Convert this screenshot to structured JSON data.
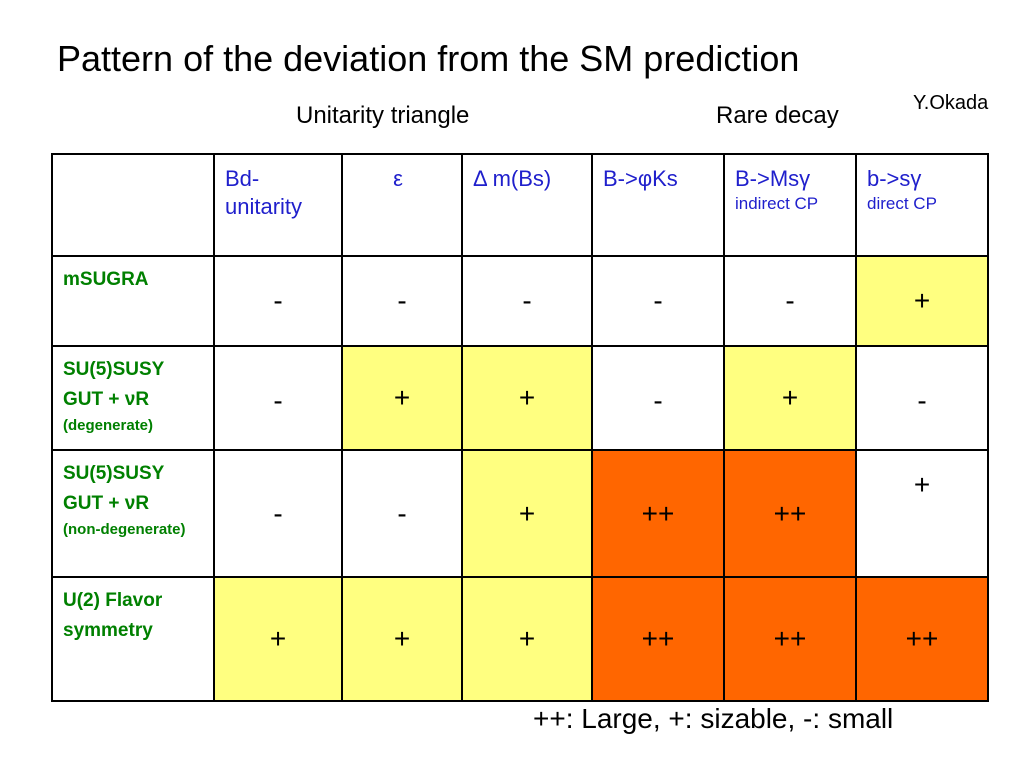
{
  "slide": {
    "title": "Pattern of the deviation from the SM prediction",
    "author": "Y.Okada",
    "group_unitarity": "Unitarity triangle",
    "group_rare": "Rare decay",
    "legend": "++: Large, +: sizable, -: small"
  },
  "colors": {
    "yellow": "#ffff80",
    "orange": "#ff6600",
    "header_text": "#2020cc",
    "row_label_text": "#008000"
  },
  "table": {
    "headers": [
      {
        "main": "Bd-unitarity",
        "sub": ""
      },
      {
        "main": "ε",
        "sub": ""
      },
      {
        "main": "Δ m(Bs)",
        "sub": ""
      },
      {
        "main": "B->φKs",
        "sub": ""
      },
      {
        "main": "B->Msγ",
        "sub": "indirect CP"
      },
      {
        "main": "b->sγ",
        "sub": "direct CP"
      }
    ],
    "rows": [
      {
        "label": "mSUGRA",
        "sublabel": "",
        "cells": [
          {
            "v": "-",
            "color": "white"
          },
          {
            "v": "-",
            "color": "white"
          },
          {
            "v": "-",
            "color": "white"
          },
          {
            "v": "-",
            "color": "white"
          },
          {
            "v": "-",
            "color": "white"
          },
          {
            "v": "+",
            "color": "yellow"
          }
        ]
      },
      {
        "label": "SU(5)SUSY GUT + νR",
        "sublabel": "(degenerate)",
        "cells": [
          {
            "v": "-",
            "color": "white"
          },
          {
            "v": "+",
            "color": "yellow"
          },
          {
            "v": "+",
            "color": "yellow"
          },
          {
            "v": "-",
            "color": "white"
          },
          {
            "v": "+",
            "color": "yellow"
          },
          {
            "v": "-",
            "color": "white"
          }
        ]
      },
      {
        "label": "SU(5)SUSY GUT + νR",
        "sublabel": "(non-degenerate)",
        "cells": [
          {
            "v": "-",
            "color": "white"
          },
          {
            "v": "-",
            "color": "white"
          },
          {
            "v": "+",
            "color": "yellow"
          },
          {
            "v": "++",
            "color": "orange"
          },
          {
            "v": "++",
            "color": "orange"
          },
          {
            "v": "+",
            "color": "white"
          }
        ]
      },
      {
        "label": "U(2) Flavor symmetry",
        "sublabel": "",
        "cells": [
          {
            "v": "+",
            "color": "yellow"
          },
          {
            "v": "+",
            "color": "yellow"
          },
          {
            "v": "+",
            "color": "yellow"
          },
          {
            "v": "++",
            "color": "orange"
          },
          {
            "v": "++",
            "color": "orange"
          },
          {
            "v": "++",
            "color": "orange"
          }
        ]
      }
    ]
  }
}
